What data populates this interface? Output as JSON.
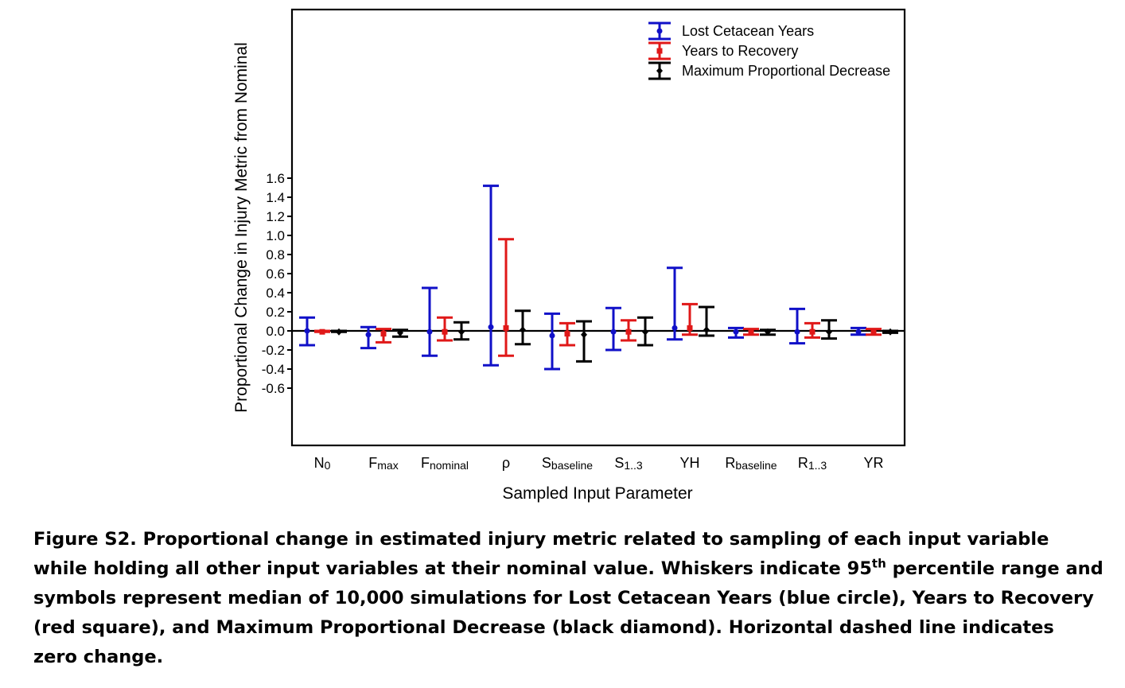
{
  "chart_data": {
    "type": "errorbar",
    "xlabel": "Sampled Input Parameter",
    "ylabel": "Proportional Change in Injury Metric from Nominal",
    "ylim": [
      -0.6,
      1.7
    ],
    "yticks": [
      "1.6",
      "1.4",
      "1.2",
      "1.0",
      "0.8",
      "0.6",
      "0.4",
      "0.2",
      "0.0",
      "-0.2",
      "-0.4",
      "-0.6"
    ],
    "ytick_values": [
      1.6,
      1.4,
      1.2,
      1.0,
      0.8,
      0.6,
      0.4,
      0.2,
      0.0,
      -0.2,
      -0.4,
      -0.6
    ],
    "categories": [
      {
        "main": "N",
        "sub": "0"
      },
      {
        "main": "F",
        "sub": "max"
      },
      {
        "main": "F",
        "sub": "nominal"
      },
      {
        "main": "ρ",
        "sub": ""
      },
      {
        "main": "S",
        "sub": "baseline"
      },
      {
        "main": "S",
        "sub": "1..3"
      },
      {
        "main": "YH",
        "sub": ""
      },
      {
        "main": "R",
        "sub": "baseline"
      },
      {
        "main": "R",
        "sub": "1..3"
      },
      {
        "main": "YR",
        "sub": ""
      }
    ],
    "legend_position": "top-right",
    "series": [
      {
        "name": "Lost Cetacean Years",
        "color": "#1010c8",
        "marker": "circle",
        "median": [
          0.0,
          -0.04,
          -0.01,
          0.04,
          -0.05,
          -0.01,
          0.03,
          -0.01,
          -0.01,
          -0.01
        ],
        "low": [
          -0.15,
          -0.18,
          -0.26,
          -0.36,
          -0.4,
          -0.2,
          -0.09,
          -0.07,
          -0.13,
          -0.04
        ],
        "high": [
          0.14,
          0.04,
          0.45,
          1.52,
          0.18,
          0.24,
          0.66,
          0.03,
          0.23,
          0.03
        ]
      },
      {
        "name": "Years to Recovery",
        "color": "#e01818",
        "marker": "square",
        "median": [
          -0.01,
          -0.03,
          -0.01,
          0.03,
          -0.03,
          -0.01,
          0.03,
          -0.01,
          -0.01,
          -0.01
        ],
        "low": [
          -0.01,
          -0.12,
          -0.1,
          -0.26,
          -0.15,
          -0.1,
          -0.04,
          -0.04,
          -0.07,
          -0.04
        ],
        "high": [
          0.0,
          0.02,
          0.14,
          0.96,
          0.08,
          0.11,
          0.28,
          0.02,
          0.08,
          0.02
        ]
      },
      {
        "name": "Maximum Proportional Decrease",
        "color": "#000000",
        "marker": "diamond",
        "median": [
          -0.01,
          -0.02,
          -0.01,
          0.01,
          -0.04,
          -0.01,
          0.01,
          -0.01,
          -0.01,
          -0.01
        ],
        "low": [
          -0.01,
          -0.06,
          -0.09,
          -0.14,
          -0.32,
          -0.15,
          -0.05,
          -0.04,
          -0.08,
          -0.02
        ],
        "high": [
          0.0,
          0.01,
          0.09,
          0.21,
          0.1,
          0.14,
          0.25,
          0.01,
          0.11,
          0.0
        ]
      }
    ]
  },
  "caption": {
    "part1": "Figure S2.  Proportional change in estimated injury metric related to sampling of each input variable while holding all other input variables at their nominal value. Whiskers indicate 95",
    "sup": "th",
    "part2": " percentile range and symbols represent median of 10,000 simulations for Lost Cetacean Years (blue circle), Years to Recovery (red square), and Maximum Proportional Decrease (black diamond). Horizontal dashed line indicates zero change."
  }
}
